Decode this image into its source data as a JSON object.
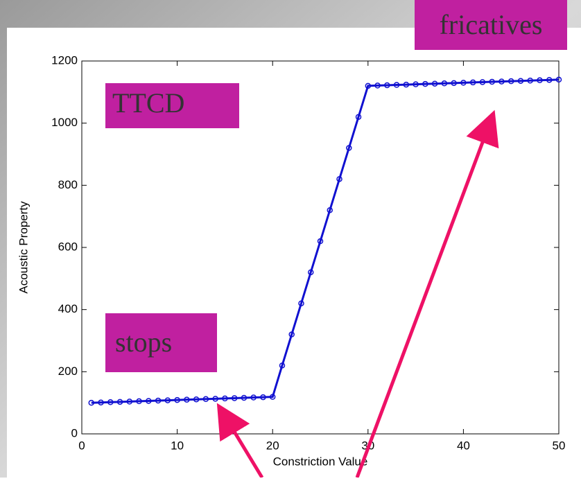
{
  "chart_data": {
    "type": "line",
    "x": [
      1,
      2,
      3,
      4,
      5,
      6,
      7,
      8,
      9,
      10,
      11,
      12,
      13,
      14,
      15,
      16,
      17,
      18,
      19,
      20,
      21,
      22,
      23,
      24,
      25,
      26,
      27,
      28,
      29,
      30,
      31,
      32,
      33,
      34,
      35,
      36,
      37,
      38,
      39,
      40,
      41,
      42,
      43,
      44,
      45,
      46,
      47,
      48,
      49,
      50
    ],
    "values": [
      100,
      101,
      102,
      103,
      104,
      105,
      106,
      107,
      108,
      109,
      110,
      111,
      112,
      113,
      114,
      115,
      116,
      117,
      118,
      119,
      220,
      320,
      420,
      520,
      620,
      720,
      820,
      920,
      1020,
      1120,
      1121,
      1122,
      1123,
      1124,
      1125,
      1126,
      1127,
      1128,
      1129,
      1130,
      1131,
      1132,
      1133,
      1134,
      1135,
      1136,
      1137,
      1138,
      1139,
      1140
    ],
    "color": "#1010d0",
    "x_label": "Constriction Value",
    "y_label": "Acoustic Property",
    "xlim": [
      0,
      50
    ],
    "xticks": [
      0,
      10,
      20,
      30,
      40,
      50
    ],
    "ylim": [
      0,
      1200
    ],
    "yticks": [
      0,
      200,
      400,
      600,
      800,
      1000,
      1200
    ],
    "grid": false,
    "annotations": [
      "TTCD",
      "stops",
      "fricatives"
    ]
  }
}
